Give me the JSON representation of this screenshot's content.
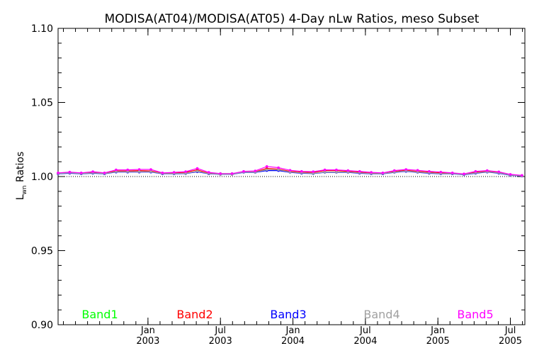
{
  "chart_data": {
    "type": "line",
    "title": "MODISA(AT04)/MODISA(AT05) 4-Day nLw Ratios, meso Subset",
    "ylabel_main": "L",
    "ylabel_sub": "wn",
    "ylabel_rest": " Ratios",
    "ylim": [
      0.9,
      1.1
    ],
    "xlim": [
      2002.38,
      2005.6
    ],
    "yticks": [
      {
        "value": 0.9,
        "label": "0.90"
      },
      {
        "value": 0.95,
        "label": "0.95"
      },
      {
        "value": 1.0,
        "label": "1.00"
      },
      {
        "value": 1.05,
        "label": "1.05"
      },
      {
        "value": 1.1,
        "label": "1.10"
      }
    ],
    "xticks": [
      {
        "value": 2003.0,
        "month": "Jan",
        "year": "2003"
      },
      {
        "value": 2003.5,
        "month": "Jul",
        "year": "2003"
      },
      {
        "value": 2004.0,
        "month": "Jan",
        "year": "2004"
      },
      {
        "value": 2004.5,
        "month": "Jul",
        "year": "2004"
      },
      {
        "value": 2005.0,
        "month": "Jan",
        "year": "2005"
      },
      {
        "value": 2005.5,
        "month": "Jul",
        "year": "2005"
      }
    ],
    "reference_line": {
      "y": 1.0,
      "style": "dotted"
    },
    "legend_placement": "bottom",
    "x": [
      2002.38,
      2002.46,
      2002.54,
      2002.62,
      2002.7,
      2002.78,
      2002.86,
      2002.94,
      2003.02,
      2003.1,
      2003.18,
      2003.26,
      2003.34,
      2003.42,
      2003.5,
      2003.58,
      2003.66,
      2003.74,
      2003.82,
      2003.9,
      2003.98,
      2004.06,
      2004.14,
      2004.22,
      2004.3,
      2004.38,
      2004.46,
      2004.54,
      2004.62,
      2004.7,
      2004.78,
      2004.86,
      2004.94,
      2005.02,
      2005.1,
      2005.18,
      2005.26,
      2005.34,
      2005.42,
      2005.5,
      2005.58
    ],
    "series": [
      {
        "name": "Band1",
        "color": "#00ff00",
        "values": [
          1.002,
          1.0025,
          1.002,
          1.0025,
          1.002,
          1.0032,
          1.0032,
          1.0032,
          1.0032,
          1.002,
          1.002,
          1.002,
          1.0035,
          1.002,
          1.002,
          1.002,
          1.003,
          1.003,
          1.0045,
          1.0045,
          1.003,
          1.0025,
          1.002,
          1.003,
          1.003,
          1.003,
          1.0025,
          1.002,
          1.002,
          1.003,
          1.0038,
          1.003,
          1.0025,
          1.002,
          1.002,
          1.0015,
          1.0025,
          1.0032,
          1.0025,
          1.001,
          1.0005
        ]
      },
      {
        "name": "Band2",
        "color": "#ff0000",
        "values": [
          1.0022,
          1.0028,
          1.0022,
          1.003,
          1.0022,
          1.0038,
          1.0038,
          1.004,
          1.0038,
          1.0022,
          1.0025,
          1.0028,
          1.0045,
          1.0022,
          1.0015,
          1.0015,
          1.0032,
          1.0032,
          1.0055,
          1.005,
          1.0035,
          1.003,
          1.0028,
          1.004,
          1.004,
          1.0035,
          1.003,
          1.0022,
          1.002,
          1.0035,
          1.0042,
          1.0035,
          1.003,
          1.0025,
          1.0022,
          1.0015,
          1.003,
          1.0035,
          1.0028,
          1.0012,
          1.0005
        ]
      },
      {
        "name": "Band3",
        "color": "#0000ff",
        "values": [
          1.0018,
          1.0022,
          1.0018,
          1.0022,
          1.0018,
          1.003,
          1.003,
          1.003,
          1.003,
          1.0018,
          1.0018,
          1.002,
          1.0032,
          1.0018,
          1.0015,
          1.0015,
          1.0028,
          1.0028,
          1.004,
          1.004,
          1.0028,
          1.0022,
          1.002,
          1.0028,
          1.0028,
          1.0028,
          1.0022,
          1.0018,
          1.0018,
          1.0028,
          1.0035,
          1.0028,
          1.0022,
          1.0018,
          1.0018,
          1.0012,
          1.0022,
          1.003,
          1.0022,
          1.0008,
          1.0003
        ]
      },
      {
        "name": "Band4",
        "color": "#a0a0a0",
        "values": [
          1.002,
          1.0025,
          1.002,
          1.0025,
          1.002,
          1.0033,
          1.0033,
          1.0033,
          1.0033,
          1.002,
          1.002,
          1.0022,
          1.0036,
          1.002,
          1.0016,
          1.0016,
          1.003,
          1.003,
          1.0046,
          1.0046,
          1.003,
          1.0025,
          1.0022,
          1.003,
          1.003,
          1.003,
          1.0025,
          1.002,
          1.002,
          1.003,
          1.0038,
          1.003,
          1.0025,
          1.002,
          1.002,
          1.0014,
          1.0025,
          1.0032,
          1.0025,
          1.001,
          1.0004
        ]
      },
      {
        "name": "Band5",
        "color": "#ff00ff",
        "values": [
          1.0025,
          1.003,
          1.0025,
          1.0033,
          1.0025,
          1.0045,
          1.0045,
          1.0048,
          1.0048,
          1.0025,
          1.0028,
          1.0033,
          1.0055,
          1.0028,
          1.002,
          1.002,
          1.0035,
          1.0038,
          1.0068,
          1.006,
          1.0042,
          1.0035,
          1.0033,
          1.0045,
          1.0045,
          1.004,
          1.0035,
          1.0028,
          1.0025,
          1.004,
          1.0048,
          1.0042,
          1.0035,
          1.003,
          1.0025,
          1.0018,
          1.0035,
          1.004,
          1.0032,
          1.0015,
          1.0008
        ]
      }
    ]
  }
}
